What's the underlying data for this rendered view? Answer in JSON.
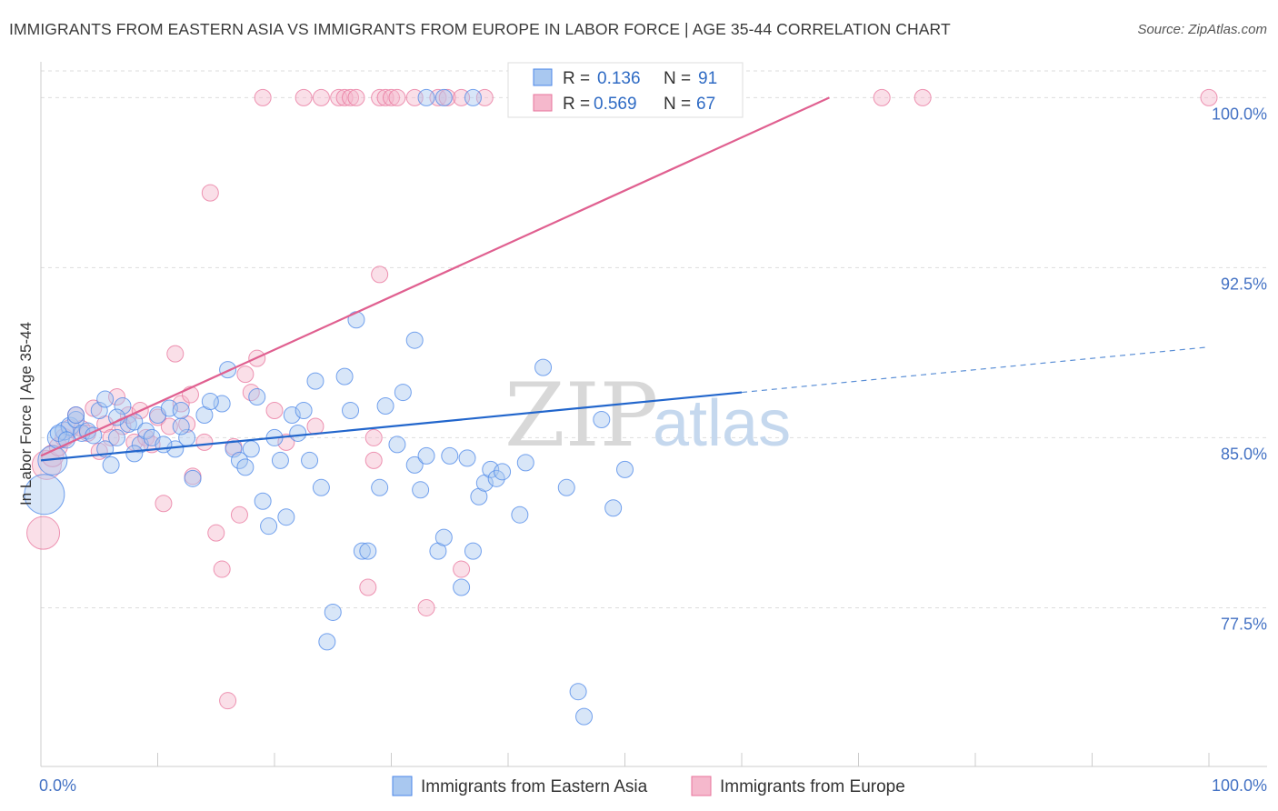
{
  "header": {
    "title": "IMMIGRANTS FROM EASTERN ASIA VS IMMIGRANTS FROM EUROPE IN LABOR FORCE | AGE 35-44 CORRELATION CHART",
    "source": "Source: ZipAtlas.com"
  },
  "watermark": {
    "part1": "ZIP",
    "part2": "atlas"
  },
  "legend": {
    "rows": [
      {
        "r_label": "R =",
        "r_value": "0.136",
        "n_label": "N =",
        "n_value": "91"
      },
      {
        "r_label": "R =",
        "r_value": "0.569",
        "n_label": "N =",
        "n_value": "67"
      }
    ]
  },
  "bottom_legend": {
    "items": [
      "Immigrants from Eastern Asia",
      "Immigrants from Europe"
    ]
  },
  "chart_data": {
    "type": "scatter",
    "title": "IMMIGRANTS FROM EASTERN ASIA VS IMMIGRANTS FROM EUROPE IN LABOR FORCE | AGE 35-44 CORRELATION CHART",
    "xlabel": "",
    "ylabel": "In Labor Force | Age 35-44",
    "xlim": [
      0,
      100
    ],
    "ylim": [
      70.5,
      101.5
    ],
    "x_tick_labels": [
      "0.0%",
      "100.0%"
    ],
    "y_ticks": [
      77.5,
      85.0,
      92.5,
      100.0
    ],
    "y_tick_labels": [
      "77.5%",
      "85.0%",
      "92.5%",
      "100.0%"
    ],
    "grid": true,
    "legend_placement": "top-center",
    "colors": {
      "eastern_asia": "#4a86e8",
      "eastern_asia_fill": "#a9c8f0",
      "europe": "#e8739b",
      "europe_fill": "#f5b8cc"
    },
    "series": [
      {
        "name": "Immigrants from Eastern Asia",
        "color": "#4a86e8",
        "trend": {
          "x0": 0,
          "y0": 84.0,
          "x1": 60,
          "y1": 87.0,
          "dashed_to_x": 100,
          "dashed_to_y": 89.0
        },
        "points": [
          [
            0.3,
            82.5,
            22
          ],
          [
            1.0,
            84.0,
            16
          ],
          [
            1.5,
            85.0,
            12
          ],
          [
            2.0,
            85.3,
            10
          ],
          [
            2.5,
            85.5,
            10
          ],
          [
            3.0,
            85.8,
            9
          ],
          [
            3.5,
            85.2,
            9
          ],
          [
            4.0,
            85.3,
            9
          ],
          [
            4.5,
            85.1,
            9
          ],
          [
            5.0,
            86.2,
            9
          ],
          [
            5.5,
            86.7,
            9
          ],
          [
            6.0,
            83.8,
            9
          ],
          [
            6.5,
            85.0,
            9
          ],
          [
            7.0,
            86.4,
            9
          ],
          [
            7.5,
            85.6,
            9
          ],
          [
            8.0,
            85.7,
            9
          ],
          [
            8.5,
            84.7,
            9
          ],
          [
            9.0,
            85.3,
            9
          ],
          [
            9.5,
            85.0,
            9
          ],
          [
            10.0,
            86.0,
            9
          ],
          [
            11.0,
            86.3,
            9
          ],
          [
            11.5,
            84.5,
            9
          ],
          [
            12.0,
            86.2,
            9
          ],
          [
            12.5,
            85.0,
            9
          ],
          [
            13.0,
            83.2,
            9
          ],
          [
            14.0,
            86.0,
            9
          ],
          [
            15.5,
            86.5,
            9
          ],
          [
            16.0,
            88.0,
            9
          ],
          [
            16.5,
            84.5,
            9
          ],
          [
            17.0,
            84.0,
            9
          ],
          [
            17.5,
            83.7,
            9
          ],
          [
            18.0,
            84.5,
            9
          ],
          [
            18.5,
            86.8,
            9
          ],
          [
            19.0,
            82.2,
            9
          ],
          [
            19.5,
            81.1,
            9
          ],
          [
            20.0,
            85.0,
            9
          ],
          [
            20.5,
            84.0,
            9
          ],
          [
            21.0,
            81.5,
            9
          ],
          [
            21.5,
            86.0,
            9
          ],
          [
            22.0,
            85.2,
            9
          ],
          [
            22.5,
            86.2,
            9
          ],
          [
            23.0,
            84.0,
            9
          ],
          [
            23.5,
            87.5,
            9
          ],
          [
            24.0,
            82.8,
            9
          ],
          [
            24.5,
            76.0,
            9
          ],
          [
            25.0,
            77.3,
            9
          ],
          [
            26.0,
            87.7,
            9
          ],
          [
            26.5,
            86.2,
            9
          ],
          [
            27.0,
            90.2,
            9
          ],
          [
            27.5,
            80.0,
            9
          ],
          [
            28.0,
            80.0,
            9
          ],
          [
            29.0,
            82.8,
            9
          ],
          [
            29.5,
            86.4,
            9
          ],
          [
            30.5,
            84.7,
            9
          ],
          [
            31.0,
            87.0,
            9
          ],
          [
            32.0,
            83.8,
            9
          ],
          [
            32.5,
            82.7,
            9
          ],
          [
            33.0,
            84.2,
            9
          ],
          [
            34.0,
            80.0,
            9
          ],
          [
            34.5,
            80.6,
            9
          ],
          [
            35.0,
            84.2,
            9
          ],
          [
            36.0,
            78.4,
            9
          ],
          [
            36.5,
            84.1,
            9
          ],
          [
            37.0,
            80.0,
            9
          ],
          [
            37.5,
            82.4,
            9
          ],
          [
            38.0,
            83.0,
            9
          ],
          [
            38.5,
            83.6,
            9
          ],
          [
            39.0,
            83.2,
            9
          ],
          [
            39.5,
            83.5,
            9
          ],
          [
            32.0,
            89.3,
            9
          ],
          [
            41.0,
            81.6,
            9
          ],
          [
            41.5,
            83.9,
            9
          ],
          [
            43.0,
            88.1,
            9
          ],
          [
            45.0,
            82.8,
            9
          ],
          [
            46.0,
            73.8,
            9
          ],
          [
            46.5,
            72.7,
            9
          ],
          [
            49.0,
            81.9,
            9
          ],
          [
            48.0,
            85.8,
            9
          ],
          [
            50.0,
            83.6,
            9
          ],
          [
            33.0,
            100.0,
            9
          ],
          [
            34.5,
            100.0,
            9
          ],
          [
            37.0,
            100.0,
            9
          ],
          [
            1.5,
            85.2,
            9
          ],
          [
            2.2,
            84.9,
            9
          ],
          [
            3.0,
            86.0,
            9
          ],
          [
            5.5,
            84.5,
            9
          ],
          [
            6.5,
            85.9,
            9
          ],
          [
            8.0,
            84.3,
            9
          ],
          [
            10.5,
            84.7,
            9
          ],
          [
            12.0,
            85.5,
            9
          ],
          [
            14.5,
            86.6,
            9
          ]
        ]
      },
      {
        "name": "Immigrants from Europe",
        "color": "#e8739b",
        "trend": {
          "x0": 0,
          "y0": 84.2,
          "x1": 67.5,
          "y1": 100.0
        },
        "points": [
          [
            0.2,
            80.8,
            18
          ],
          [
            0.5,
            83.8,
            16
          ],
          [
            1.0,
            84.2,
            12
          ],
          [
            1.5,
            84.6,
            10
          ],
          [
            2.0,
            85.0,
            10
          ],
          [
            2.5,
            85.4,
            10
          ],
          [
            3.0,
            86.0,
            9
          ],
          [
            3.5,
            85.4,
            9
          ],
          [
            4.0,
            85.2,
            9
          ],
          [
            4.5,
            86.3,
            9
          ],
          [
            5.0,
            84.4,
            9
          ],
          [
            5.5,
            85.6,
            9
          ],
          [
            6.0,
            85.0,
            9
          ],
          [
            6.5,
            86.8,
            9
          ],
          [
            7.0,
            85.5,
            9
          ],
          [
            7.5,
            86.0,
            9
          ],
          [
            8.0,
            84.8,
            9
          ],
          [
            8.5,
            86.2,
            9
          ],
          [
            9.0,
            85.0,
            9
          ],
          [
            9.5,
            84.7,
            9
          ],
          [
            10.0,
            85.9,
            9
          ],
          [
            10.5,
            82.1,
            9
          ],
          [
            11.0,
            85.5,
            9
          ],
          [
            11.5,
            88.7,
            9
          ],
          [
            12.0,
            86.5,
            9
          ],
          [
            12.5,
            85.6,
            9
          ],
          [
            13.0,
            83.3,
            9
          ],
          [
            14.0,
            84.8,
            9
          ],
          [
            14.5,
            95.8,
            9
          ],
          [
            15.0,
            80.8,
            9
          ],
          [
            15.5,
            79.2,
            9
          ],
          [
            16.0,
            73.4,
            9
          ],
          [
            17.0,
            81.6,
            9
          ],
          [
            17.5,
            87.8,
            9
          ],
          [
            18.0,
            87.0,
            9
          ],
          [
            18.5,
            88.5,
            9
          ],
          [
            19.0,
            100.0,
            9
          ],
          [
            22.5,
            100.0,
            9
          ],
          [
            24.0,
            100.0,
            9
          ],
          [
            25.5,
            100.0,
            9
          ],
          [
            26.0,
            100.0,
            9
          ],
          [
            26.5,
            100.0,
            9
          ],
          [
            27.0,
            100.0,
            9
          ],
          [
            29.0,
            100.0,
            9
          ],
          [
            29.5,
            100.0,
            9
          ],
          [
            30.0,
            100.0,
            9
          ],
          [
            30.5,
            100.0,
            9
          ],
          [
            32.0,
            100.0,
            9
          ],
          [
            34.0,
            100.0,
            9
          ],
          [
            34.8,
            100.0,
            9
          ],
          [
            36.0,
            100.0,
            9
          ],
          [
            38.0,
            100.0,
            9
          ],
          [
            57.0,
            100.0,
            9
          ],
          [
            72.0,
            100.0,
            9
          ],
          [
            75.5,
            100.0,
            9
          ],
          [
            100.0,
            100.0,
            9
          ],
          [
            28.5,
            85.0,
            9
          ],
          [
            28.0,
            78.4,
            9
          ],
          [
            28.5,
            84.0,
            9
          ],
          [
            29.0,
            92.2,
            9
          ],
          [
            33.0,
            77.5,
            9
          ],
          [
            36.0,
            79.2,
            9
          ],
          [
            21.0,
            84.8,
            9
          ],
          [
            20.0,
            86.2,
            9
          ],
          [
            23.5,
            85.5,
            9
          ],
          [
            16.5,
            84.6,
            9
          ],
          [
            12.8,
            86.9,
            9
          ]
        ]
      }
    ]
  }
}
